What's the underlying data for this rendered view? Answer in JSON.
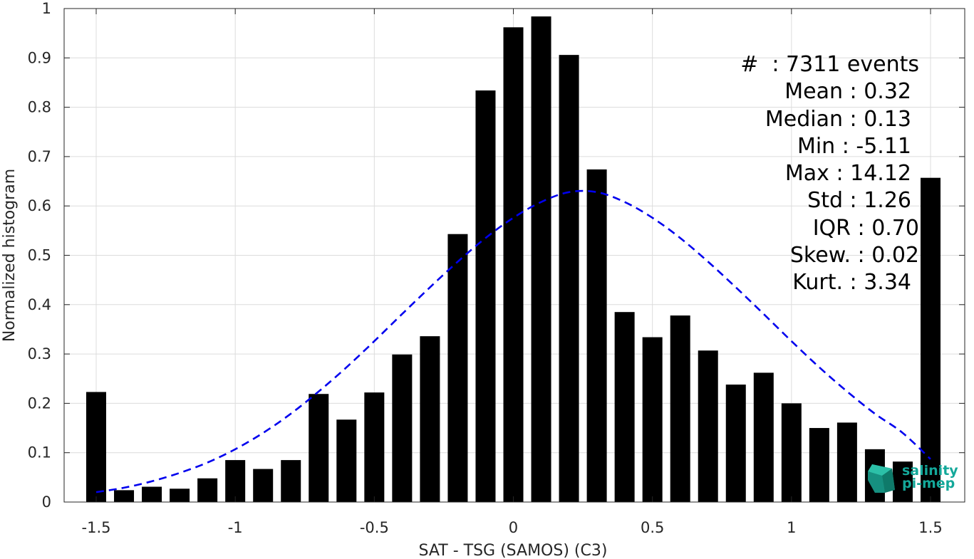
{
  "chart_data": {
    "type": "bar",
    "xlabel": "SAT - TSG (SAMOS) (C3)",
    "ylabel": "Normalized histogram",
    "xlim": [
      -1.65,
      1.6
    ],
    "ylim": [
      0,
      1
    ],
    "xticks": [
      -1.5,
      -1,
      -0.5,
      0,
      0.5,
      1,
      1.5
    ],
    "xtick_labels": [
      "-1.5",
      "-1",
      "-0.5",
      "0",
      "0.5",
      "1",
      "1.5"
    ],
    "yticks": [
      0,
      0.1,
      0.2,
      0.3,
      0.4,
      0.5,
      0.6,
      0.7,
      0.8,
      0.9,
      1
    ],
    "ytick_labels": [
      "0",
      "0.1",
      "0.2",
      "0.3",
      "0.4",
      "0.5",
      "0.6",
      "0.7",
      "0.8",
      "0.9",
      "1"
    ],
    "grid": true,
    "bar_color": "#000000",
    "fit_color": "#0000ee",
    "bins": [
      -1.5,
      -1.4,
      -1.3,
      -1.2,
      -1.1,
      -1.0,
      -0.9,
      -0.8,
      -0.7,
      -0.6,
      -0.5,
      -0.4,
      -0.3,
      -0.2,
      -0.1,
      0.0,
      0.1,
      0.2,
      0.3,
      0.4,
      0.5,
      0.6,
      0.7,
      0.8,
      0.9,
      1.0,
      1.1,
      1.2,
      1.3,
      1.4,
      1.5
    ],
    "values": [
      0.223,
      0.024,
      0.031,
      0.027,
      0.048,
      0.085,
      0.067,
      0.085,
      0.219,
      0.167,
      0.222,
      0.299,
      0.336,
      0.543,
      0.834,
      0.962,
      0.984,
      0.906,
      0.674,
      0.385,
      0.334,
      0.378,
      0.307,
      0.238,
      0.262,
      0.2,
      0.15,
      0.161,
      0.107,
      0.082,
      0.657
    ],
    "fit_curve": {
      "style": "dashed",
      "x": [
        -1.5,
        -1.4,
        -1.3,
        -1.2,
        -1.1,
        -1.0,
        -0.9,
        -0.8,
        -0.7,
        -0.6,
        -0.5,
        -0.4,
        -0.3,
        -0.2,
        -0.1,
        0.0,
        0.1,
        0.2,
        0.3,
        0.4,
        0.5,
        0.6,
        0.7,
        0.8,
        0.9,
        1.0,
        1.1,
        1.2,
        1.3,
        1.4,
        1.5
      ],
      "y": [
        0.02,
        0.029,
        0.042,
        0.059,
        0.08,
        0.107,
        0.14,
        0.179,
        0.224,
        0.273,
        0.326,
        0.381,
        0.435,
        0.487,
        0.535,
        0.576,
        0.608,
        0.628,
        0.628,
        0.608,
        0.576,
        0.535,
        0.487,
        0.435,
        0.381,
        0.326,
        0.273,
        0.224,
        0.179,
        0.14,
        0.087
      ]
    },
    "stats_lines": [
      "#  : 7311 events",
      "Mean : 0.32",
      "Median : 0.13",
      "Min : -5.11",
      "Max : 14.12",
      "Std : 1.26",
      "IQR : 0.70",
      "Skew. : 0.02",
      "Kurt. : 3.34"
    ]
  },
  "logo": {
    "line1": "salinity",
    "line2": "pi-mep",
    "color": "#14a89a"
  }
}
